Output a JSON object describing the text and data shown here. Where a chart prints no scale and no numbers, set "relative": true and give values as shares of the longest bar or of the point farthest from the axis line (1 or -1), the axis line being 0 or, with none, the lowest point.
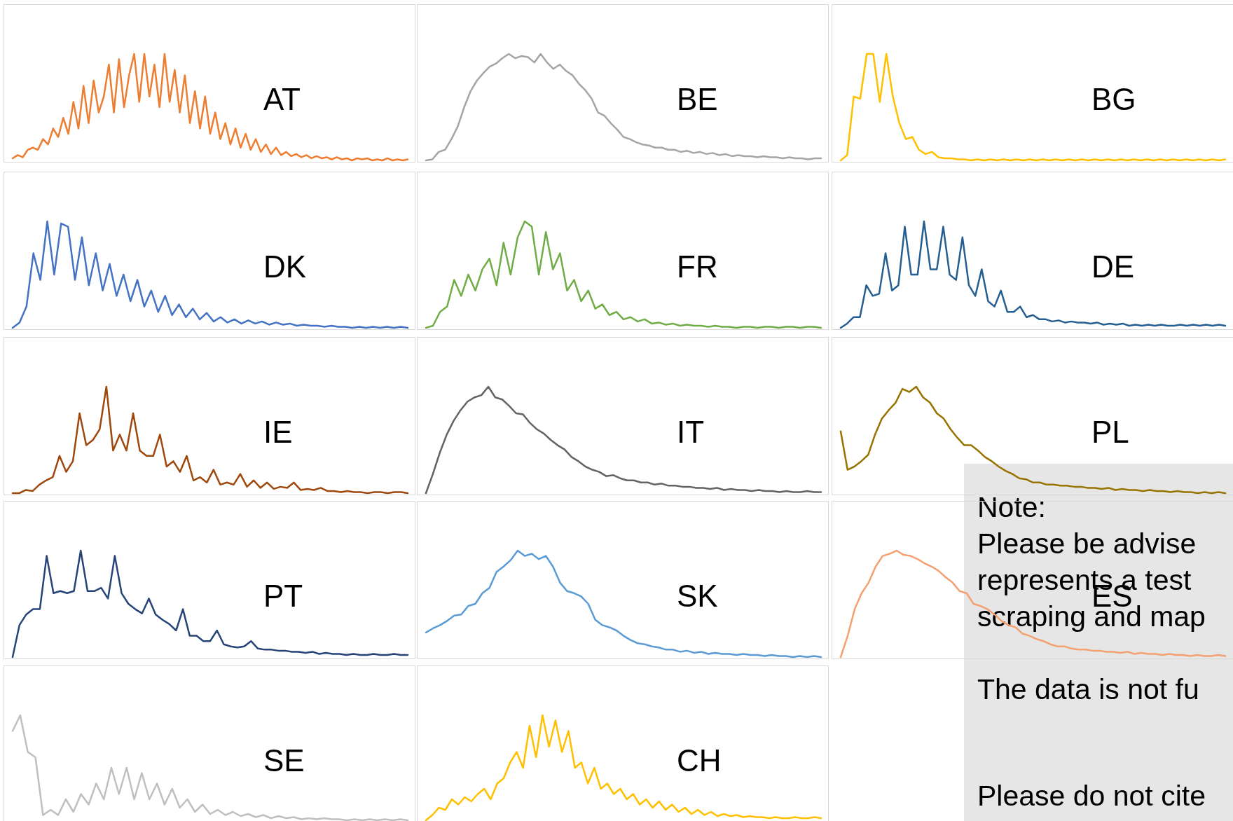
{
  "chart_data": [
    {
      "type": "line",
      "title": "AT",
      "relative": true,
      "color": "#ed7d31",
      "values": [
        0.02,
        0.05,
        0.03,
        0.1,
        0.12,
        0.1,
        0.2,
        0.15,
        0.3,
        0.22,
        0.4,
        0.25,
        0.55,
        0.3,
        0.7,
        0.35,
        0.75,
        0.45,
        0.6,
        0.9,
        0.45,
        0.95,
        0.5,
        0.8,
        1.0,
        0.55,
        1.0,
        0.6,
        0.9,
        0.5,
        1.0,
        0.55,
        0.85,
        0.45,
        0.8,
        0.35,
        0.65,
        0.3,
        0.6,
        0.25,
        0.45,
        0.2,
        0.35,
        0.15,
        0.3,
        0.12,
        0.25,
        0.1,
        0.2,
        0.08,
        0.15,
        0.06,
        0.12,
        0.05,
        0.08,
        0.04,
        0.06,
        0.03,
        0.05,
        0.02,
        0.04,
        0.02,
        0.03,
        0.01,
        0.03,
        0.01,
        0.02,
        0,
        0.02,
        0.01,
        0.02,
        0,
        0.01,
        0,
        0.02,
        0,
        0.01,
        0,
        0.01
      ]
    },
    {
      "type": "line",
      "title": "BE",
      "relative": true,
      "color": "#a5a5a5",
      "values": [
        0,
        0.01,
        0.08,
        0.1,
        0.2,
        0.32,
        0.5,
        0.65,
        0.75,
        0.82,
        0.88,
        0.91,
        0.96,
        1.0,
        0.96,
        0.98,
        0.97,
        0.92,
        1.0,
        0.92,
        0.86,
        0.9,
        0.84,
        0.8,
        0.72,
        0.66,
        0.58,
        0.45,
        0.42,
        0.35,
        0.29,
        0.22,
        0.2,
        0.17,
        0.15,
        0.14,
        0.12,
        0.12,
        0.1,
        0.1,
        0.08,
        0.09,
        0.07,
        0.08,
        0.06,
        0.07,
        0.05,
        0.06,
        0.04,
        0.05,
        0.04,
        0.04,
        0.03,
        0.04,
        0.03,
        0.03,
        0.02,
        0.03,
        0.02,
        0.02,
        0.01,
        0.02,
        0.02
      ]
    },
    {
      "type": "line",
      "title": "BG",
      "relative": true,
      "color": "#ffc000",
      "values": [
        0,
        0.05,
        0.6,
        0.58,
        1,
        1,
        0.55,
        1,
        0.6,
        0.35,
        0.2,
        0.22,
        0.1,
        0.06,
        0.08,
        0.03,
        0.02,
        0.02,
        0.01,
        0.01,
        0,
        0.01,
        0,
        0.01,
        0,
        0.01,
        0,
        0.01,
        0,
        0.01,
        0,
        0.01,
        0,
        0.01,
        0,
        0.01,
        0,
        0.01,
        0,
        0.01,
        0,
        0.01,
        0,
        0.01,
        0,
        0.01,
        0,
        0.01,
        0,
        0.01,
        0,
        0.01,
        0,
        0.01,
        0,
        0.01,
        0,
        0.01,
        0,
        0.01
      ]
    },
    {
      "type": "line",
      "title": "DK",
      "relative": true,
      "color": "#4472c4",
      "values": [
        0,
        0.05,
        0.2,
        0.7,
        0.45,
        1,
        0.5,
        0.98,
        0.95,
        0.45,
        0.85,
        0.4,
        0.7,
        0.35,
        0.6,
        0.3,
        0.5,
        0.25,
        0.45,
        0.2,
        0.35,
        0.15,
        0.3,
        0.12,
        0.22,
        0.1,
        0.18,
        0.08,
        0.14,
        0.06,
        0.1,
        0.05,
        0.08,
        0.04,
        0.07,
        0.04,
        0.06,
        0.03,
        0.05,
        0.03,
        0.04,
        0.02,
        0.03,
        0.02,
        0.02,
        0.01,
        0.02,
        0.01,
        0.01,
        0,
        0.01,
        0,
        0.01,
        0,
        0.01,
        0,
        0.01,
        0
      ]
    },
    {
      "type": "line",
      "title": "FR",
      "relative": true,
      "color": "#70ad47",
      "values": [
        0,
        0.02,
        0.15,
        0.2,
        0.45,
        0.3,
        0.5,
        0.35,
        0.55,
        0.65,
        0.4,
        0.8,
        0.5,
        0.85,
        1,
        0.95,
        0.5,
        0.9,
        0.55,
        0.7,
        0.35,
        0.45,
        0.25,
        0.35,
        0.18,
        0.22,
        0.12,
        0.15,
        0.08,
        0.1,
        0.06,
        0.08,
        0.04,
        0.05,
        0.03,
        0.04,
        0.02,
        0.03,
        0.02,
        0.02,
        0.01,
        0.02,
        0.01,
        0.01,
        0,
        0.01,
        0.01,
        0,
        0.01,
        0.01,
        0,
        0.01,
        0.01,
        0,
        0.01,
        0.01,
        0
      ]
    },
    {
      "type": "line",
      "title": "DE",
      "relative": true,
      "color": "#255e91",
      "values": [
        0,
        0.04,
        0.1,
        0.1,
        0.4,
        0.3,
        0.32,
        0.7,
        0.35,
        0.4,
        0.95,
        0.5,
        0.5,
        1,
        0.55,
        0.55,
        0.95,
        0.5,
        0.45,
        0.85,
        0.4,
        0.3,
        0.55,
        0.25,
        0.2,
        0.35,
        0.15,
        0.15,
        0.2,
        0.1,
        0.12,
        0.08,
        0.08,
        0.06,
        0.07,
        0.05,
        0.06,
        0.05,
        0.05,
        0.04,
        0.05,
        0.03,
        0.04,
        0.03,
        0.04,
        0.02,
        0.03,
        0.02,
        0.03,
        0.02,
        0.03,
        0.02,
        0.02,
        0.03,
        0.02,
        0.03,
        0.02,
        0.03,
        0.02,
        0.03,
        0.02
      ]
    },
    {
      "type": "line",
      "title": "IE",
      "relative": true,
      "color": "#9e480e",
      "values": [
        0,
        0,
        0.03,
        0.02,
        0.08,
        0.12,
        0.15,
        0.35,
        0.2,
        0.3,
        0.75,
        0.45,
        0.5,
        0.6,
        1,
        0.4,
        0.55,
        0.4,
        0.75,
        0.4,
        0.35,
        0.35,
        0.55,
        0.25,
        0.3,
        0.2,
        0.35,
        0.12,
        0.15,
        0.1,
        0.22,
        0.08,
        0.1,
        0.08,
        0.18,
        0.06,
        0.12,
        0.05,
        0.1,
        0.04,
        0.06,
        0.05,
        0.1,
        0.03,
        0.04,
        0.03,
        0.05,
        0.02,
        0.02,
        0.01,
        0.02,
        0.01,
        0.01,
        0,
        0.01,
        0.01,
        0,
        0.01,
        0.01,
        0
      ]
    },
    {
      "type": "line",
      "title": "IT",
      "relative": true,
      "color": "#636363",
      "values": [
        0,
        0.18,
        0.38,
        0.55,
        0.68,
        0.78,
        0.86,
        0.9,
        0.92,
        1,
        0.9,
        0.88,
        0.82,
        0.75,
        0.74,
        0.66,
        0.6,
        0.56,
        0.5,
        0.45,
        0.41,
        0.34,
        0.3,
        0.25,
        0.22,
        0.2,
        0.16,
        0.17,
        0.14,
        0.12,
        0.12,
        0.1,
        0.1,
        0.08,
        0.09,
        0.07,
        0.07,
        0.06,
        0.06,
        0.05,
        0.05,
        0.04,
        0.05,
        0.03,
        0.04,
        0.03,
        0.03,
        0.02,
        0.03,
        0.02,
        0.02,
        0.01,
        0.02,
        0.01,
        0.01,
        0.02,
        0.01,
        0.01
      ]
    },
    {
      "type": "line",
      "title": "PL",
      "relative": true,
      "color": "#997300",
      "values": [
        0.58,
        0.22,
        0.25,
        0.3,
        0.36,
        0.55,
        0.7,
        0.78,
        0.85,
        0.98,
        0.95,
        1,
        0.9,
        0.85,
        0.75,
        0.7,
        0.6,
        0.52,
        0.45,
        0.45,
        0.4,
        0.34,
        0.3,
        0.25,
        0.21,
        0.18,
        0.14,
        0.13,
        0.1,
        0.1,
        0.08,
        0.08,
        0.07,
        0.07,
        0.06,
        0.06,
        0.05,
        0.05,
        0.04,
        0.05,
        0.03,
        0.04,
        0.03,
        0.03,
        0.02,
        0.03,
        0.02,
        0.02,
        0.01,
        0.02,
        0.01,
        0.01,
        0,
        0.01,
        0,
        0.01,
        0
      ]
    },
    {
      "type": "line",
      "title": "PT",
      "relative": true,
      "color": "#264478",
      "values": [
        0,
        0.3,
        0.4,
        0.45,
        0.45,
        0.95,
        0.6,
        0.62,
        0.6,
        0.62,
        1,
        0.62,
        0.62,
        0.65,
        0.55,
        0.95,
        0.6,
        0.5,
        0.45,
        0.41,
        0.55,
        0.4,
        0.35,
        0.31,
        0.25,
        0.45,
        0.2,
        0.2,
        0.15,
        0.15,
        0.25,
        0.12,
        0.1,
        0.09,
        0.1,
        0.15,
        0.08,
        0.07,
        0.07,
        0.06,
        0.06,
        0.05,
        0.05,
        0.04,
        0.05,
        0.03,
        0.04,
        0.03,
        0.03,
        0.02,
        0.03,
        0.02,
        0.02,
        0.03,
        0.02,
        0.02,
        0.03,
        0.02,
        0.02
      ]
    },
    {
      "type": "line",
      "title": "SK",
      "relative": true,
      "color": "#5b9bd5",
      "values": [
        0.23,
        0.27,
        0.3,
        0.34,
        0.39,
        0.4,
        0.48,
        0.5,
        0.6,
        0.65,
        0.8,
        0.85,
        0.91,
        1,
        0.95,
        0.97,
        0.92,
        0.95,
        0.85,
        0.7,
        0.62,
        0.6,
        0.57,
        0.5,
        0.35,
        0.3,
        0.28,
        0.25,
        0.2,
        0.16,
        0.13,
        0.12,
        0.1,
        0.09,
        0.07,
        0.07,
        0.05,
        0.06,
        0.04,
        0.05,
        0.03,
        0.04,
        0.03,
        0.03,
        0.02,
        0.03,
        0.02,
        0.02,
        0.01,
        0.02,
        0.01,
        0.01,
        0,
        0.01,
        0,
        0.01,
        0
      ]
    },
    {
      "type": "line",
      "title": "ES",
      "relative": true,
      "color": "#f4a070",
      "values": [
        0,
        0.2,
        0.45,
        0.6,
        0.7,
        0.85,
        0.95,
        0.97,
        1,
        0.96,
        0.95,
        0.92,
        0.88,
        0.85,
        0.81,
        0.75,
        0.7,
        0.62,
        0.6,
        0.5,
        0.48,
        0.45,
        0.4,
        0.34,
        0.3,
        0.28,
        0.22,
        0.2,
        0.17,
        0.15,
        0.12,
        0.1,
        0.1,
        0.08,
        0.07,
        0.07,
        0.06,
        0.06,
        0.05,
        0.05,
        0.04,
        0.05,
        0.03,
        0.04,
        0.03,
        0.03,
        0.02,
        0.03,
        0.02,
        0.02,
        0.01,
        0.02,
        0.01,
        0.01,
        0.02,
        0.01
      ]
    },
    {
      "type": "line",
      "title": "SE",
      "relative": true,
      "color": "#bfbfbf",
      "values": [
        0.85,
        1,
        0.65,
        0.6,
        0.05,
        0.1,
        0.05,
        0.2,
        0.08,
        0.25,
        0.15,
        0.35,
        0.2,
        0.5,
        0.25,
        0.5,
        0.2,
        0.45,
        0.2,
        0.35,
        0.15,
        0.3,
        0.12,
        0.2,
        0.08,
        0.15,
        0.06,
        0.1,
        0.05,
        0.08,
        0.04,
        0.06,
        0.03,
        0.05,
        0.02,
        0.04,
        0.02,
        0.03,
        0.01,
        0.02,
        0.01,
        0.02,
        0.01,
        0.01,
        0,
        0.01,
        0,
        0.01,
        0,
        0.01,
        0,
        0.01,
        0
      ]
    },
    {
      "type": "line",
      "title": "CH",
      "relative": true,
      "color": "#ffc000",
      "values": [
        0,
        0.05,
        0.12,
        0.1,
        0.2,
        0.15,
        0.22,
        0.18,
        0.25,
        0.3,
        0.2,
        0.35,
        0.4,
        0.55,
        0.65,
        0.5,
        0.9,
        0.6,
        1,
        0.7,
        0.95,
        0.65,
        0.85,
        0.5,
        0.55,
        0.35,
        0.5,
        0.3,
        0.35,
        0.25,
        0.3,
        0.2,
        0.25,
        0.15,
        0.2,
        0.12,
        0.18,
        0.1,
        0.15,
        0.08,
        0.12,
        0.06,
        0.1,
        0.05,
        0.08,
        0.04,
        0.06,
        0.04,
        0.05,
        0.03,
        0.04,
        0.03,
        0.03,
        0.02,
        0.03,
        0.02,
        0.02,
        0.03,
        0.02,
        0.02,
        0.03,
        0.02
      ]
    },
    {
      "type": "other",
      "annotations": [
        "Note:",
        "Please be advise",
        "represents a test",
        "scraping and map",
        "The data is not fu",
        "Please do not cite"
      ]
    }
  ]
}
